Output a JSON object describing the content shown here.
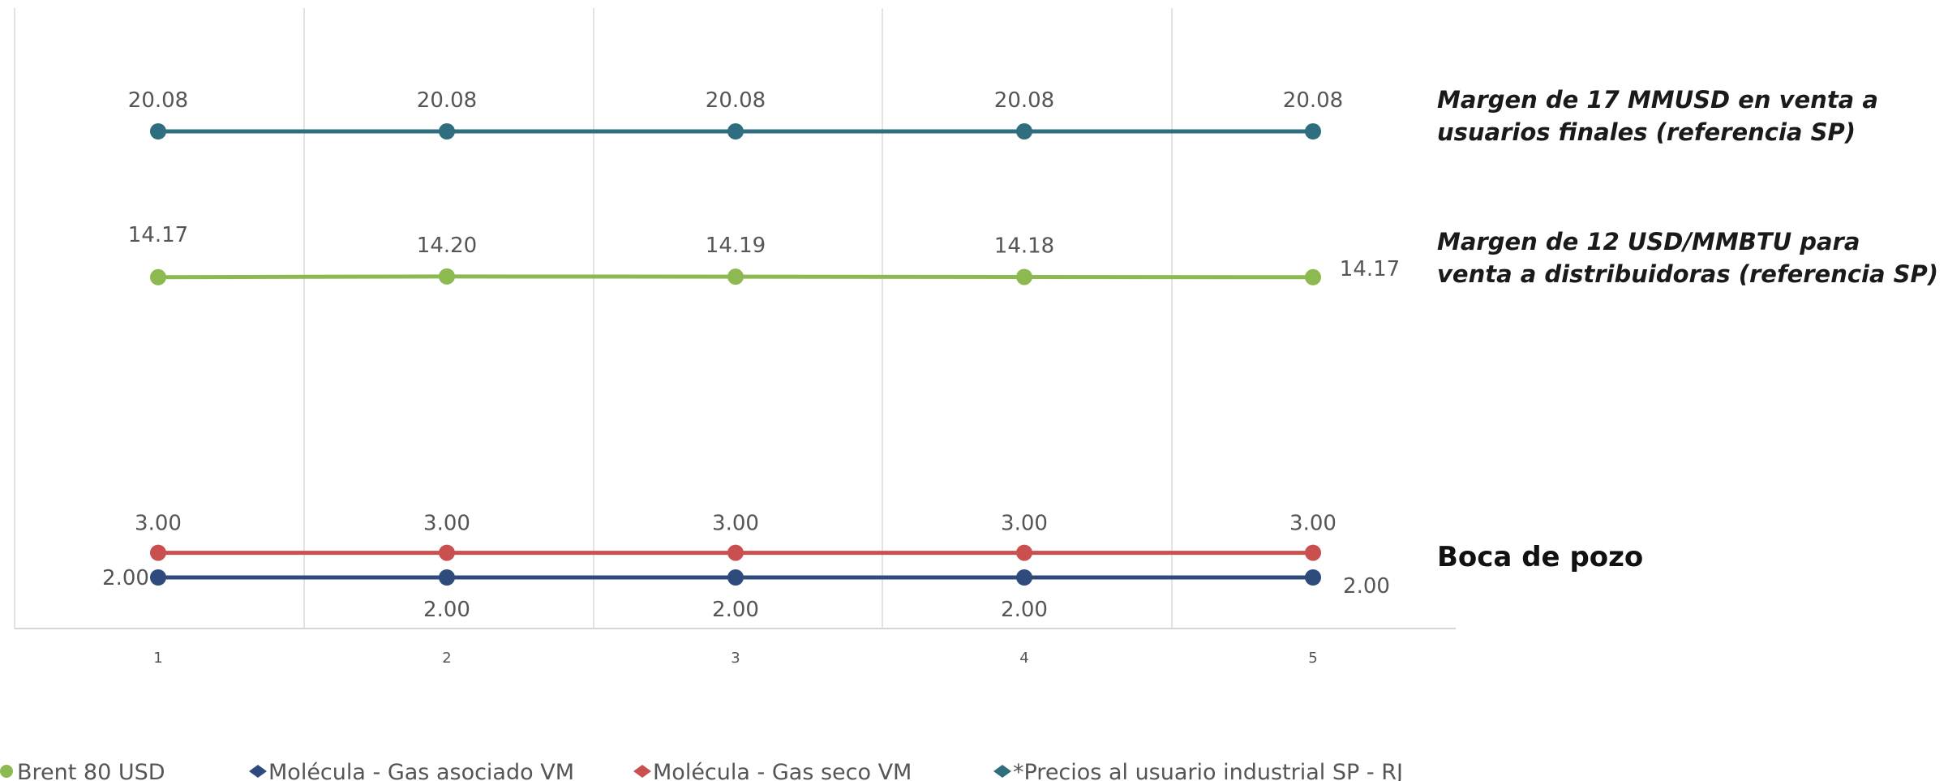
{
  "chart_data": {
    "type": "line",
    "x": [
      1,
      2,
      3,
      4,
      5
    ],
    "x_tick_labels": [
      "1",
      "2",
      "3",
      "4",
      "5"
    ],
    "ylim": [
      0,
      23
    ],
    "grid": "vertical",
    "legend_position": "bottom-left",
    "series": [
      {
        "name": "Brent 80 USD",
        "color": "#8cba51",
        "values": [
          14.17,
          14.2,
          14.19,
          14.18,
          14.17
        ],
        "labels": [
          "14.17",
          "14.20",
          "14.19",
          "14.18",
          "14.17"
        ]
      },
      {
        "name": "Molécula - Gas asociado VM",
        "color": "#2f4b7c",
        "values": [
          2.0,
          2.0,
          2.0,
          2.0,
          2.0
        ],
        "labels": [
          "2.00",
          "2.00",
          "2.00",
          "2.00",
          "2.00"
        ]
      },
      {
        "name": "Molécula - Gas seco VM",
        "color": "#c9504f",
        "values": [
          3.0,
          3.0,
          3.0,
          3.0,
          3.0
        ],
        "labels": [
          "3.00",
          "3.00",
          "3.00",
          "3.00",
          "3.00"
        ]
      },
      {
        "name": "*Precios al usuario industrial SP - RJ",
        "color": "#2e6e7e",
        "values": [
          20.08,
          20.08,
          20.08,
          20.08,
          20.08
        ],
        "labels": [
          "20.08",
          "20.08",
          "20.08",
          "20.08",
          "20.08"
        ]
      }
    ],
    "annotations": [
      "Margen de 17 MMUSD en venta a usuarios finales (referencia SP)",
      "Margen de 12 USD/MMBTU para venta a distribuidoras (referencia SP)",
      "Boca de pozo"
    ]
  }
}
